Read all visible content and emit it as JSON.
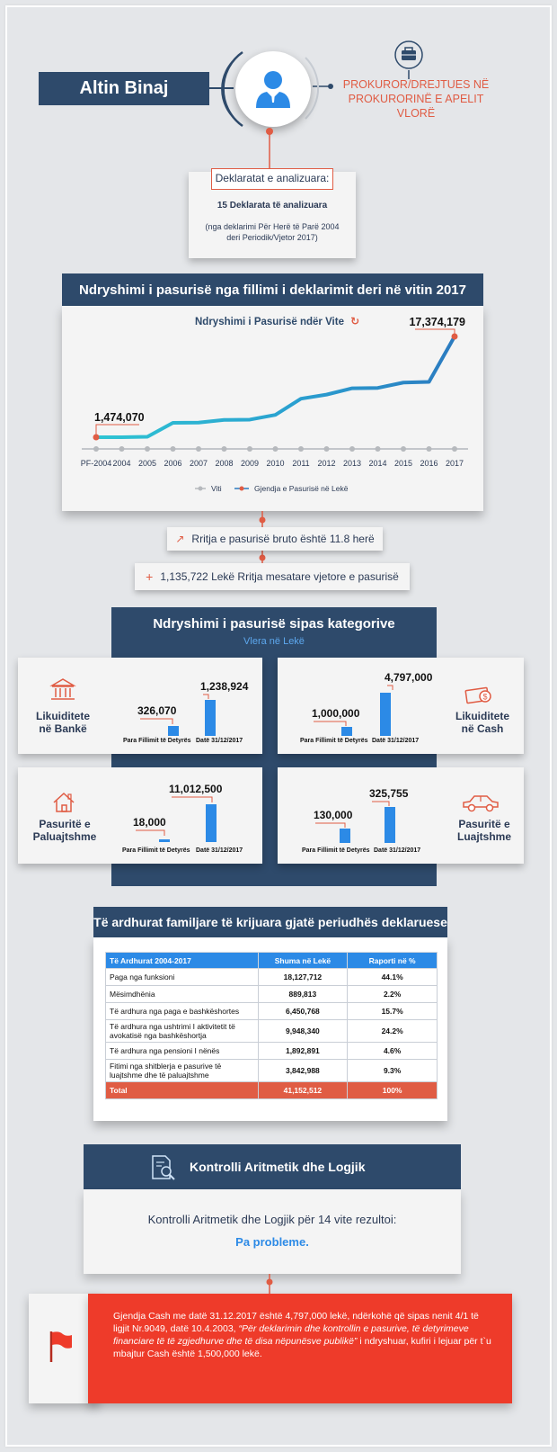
{
  "profile": {
    "name": "Altin Binaj",
    "position_line1": "PROKUROR/DREJTUES NË",
    "position_line2": "PROKURORINË E APELIT VLORË"
  },
  "declarations": {
    "title": "Deklaratat e analizuara:",
    "count": "15 Deklarata të analizuara",
    "note": "(nga deklarimi Për Herë të Parë 2004 deri Periodik/Vjetor 2017)"
  },
  "wealth_change": {
    "section_title": "Ndryshimi i pasurisë nga fillimi i deklarimit deri në vitin 2017",
    "chart_title": "Ndryshimi i Pasurisë ndër Vite",
    "start_label": "1,474,070",
    "end_label": "17,374,179",
    "legend_axis": "Viti",
    "legend_series": "Gjendja e Pasurisë në Lekë",
    "growth_note": "Rritja e pasurisë bruto është 11.8 herë",
    "avg_note": "1,135,722 Lekë Rritja mesatare vjetore e pasurisë",
    "colors": {
      "early": "#2ec5d3",
      "late": "#2b7bc0",
      "marker": "#e05c44"
    }
  },
  "chart_data": [
    {
      "type": "line",
      "title": "Ndryshimi i Pasurisë ndër Vite",
      "categories": [
        "PF-2004",
        "2004",
        "2005",
        "2006",
        "2007",
        "2008",
        "2009",
        "2010",
        "2011",
        "2012",
        "2013",
        "2014",
        "2015",
        "2016",
        "2017"
      ],
      "series": [
        {
          "name": "Gjendja e Pasurisë në Lekë",
          "values": [
            1474070,
            1474070,
            1550000,
            3750000,
            3780000,
            4200000,
            4250000,
            5000000,
            7550000,
            8200000,
            9200000,
            9250000,
            10100000,
            10200000,
            17374179
          ]
        }
      ],
      "xlabel": "Viti",
      "data_labels": [
        "1,474,070",
        "17,374,179"
      ]
    },
    {
      "type": "bar",
      "title": "Likuiditete në Bankë",
      "categories": [
        "Para Fillimit të Detyrës",
        "Datë 31/12/2017"
      ],
      "values": [
        326070,
        1238924
      ]
    },
    {
      "type": "bar",
      "title": "Likuiditete në Cash",
      "categories": [
        "Para Fillimit të Detyrës",
        "Datë 31/12/2017"
      ],
      "values": [
        1000000,
        4797000
      ]
    },
    {
      "type": "bar",
      "title": "Pasuritë e Paluajtshme",
      "categories": [
        "Para Fillimit të Detyrës",
        "Datë 31/12/2017"
      ],
      "values": [
        18000,
        11012500
      ]
    },
    {
      "type": "bar",
      "title": "Pasuritë e Luajtshme",
      "categories": [
        "Para Fillimit të Detyrës",
        "Datë 31/12/2017"
      ],
      "values": [
        130000,
        325755
      ]
    }
  ],
  "categories_section": {
    "title": "Ndryshimi i pasurisë sipas kategorive",
    "subtitle": "Vlera në Lekë",
    "x_before": "Para Fillimit të Detyrës",
    "x_after": "Datë 31/12/2017",
    "cards": [
      {
        "label_1": "Likuiditete",
        "label_2": "në Bankë",
        "before": "326,070",
        "after": "1,238,924"
      },
      {
        "label_1": "Likuiditete",
        "label_2": "në Cash",
        "before": "1,000,000",
        "after": "4,797,000"
      },
      {
        "label_1": "Pasuritë e",
        "label_2": "Paluajtshme",
        "before": "18,000",
        "after": "11,012,500"
      },
      {
        "label_1": "Pasuritë e",
        "label_2": "Luajtshme",
        "before": "130,000",
        "after": "325,755"
      }
    ]
  },
  "income": {
    "section_title": "Të ardhurat familjare të krijuara gjatë periudhës deklaruese",
    "headers": [
      "Të Ardhurat 2004-2017",
      "Shuma në Lekë",
      "Raporti në %"
    ],
    "rows": [
      [
        "Paga nga funksioni",
        "18,127,712",
        "44.1%"
      ],
      [
        "Mësimdhënia",
        "889,813",
        "2.2%"
      ],
      [
        "Të ardhura nga paga e bashkëshortes",
        "6,450,768",
        "15.7%"
      ],
      [
        "Të ardhura nga ushtrimi I aktivitetit të avokatisë nga bashkëshortja",
        "9,948,340",
        "24.2%"
      ],
      [
        "Të ardhura nga pensioni I nënës",
        "1,892,891",
        "4.6%"
      ],
      [
        "Fitimi nga shitblerja e pasurive të luajtshme dhe të paluajtshme",
        "3,842,988",
        "9.3%"
      ]
    ],
    "total": [
      "Total",
      "41,152,512",
      "100%"
    ]
  },
  "control": {
    "title": "Kontrolli Aritmetik dhe Logjik",
    "text": "Kontrolli Aritmetik dhe Logjik për 14 vite rezultoi:",
    "result": "Pa probleme."
  },
  "alert": {
    "part1": "Gjendja Cash me datë 31.12.2017 është 4,797,000 lekë, ndërkohë që sipas nenit 4/1 të ligjit Nr.9049, datë 10.4.2003, ",
    "part2": "“Për deklarimin dhe kontrollin e pasurive, të detyrimeve financiare të të zgjedhurve dhe të disa nëpunësve publikë”",
    "part3": " i ndryshuar, kufiri i lejuar për t`u mbajtur Cash është 1,500,000 lekë."
  }
}
